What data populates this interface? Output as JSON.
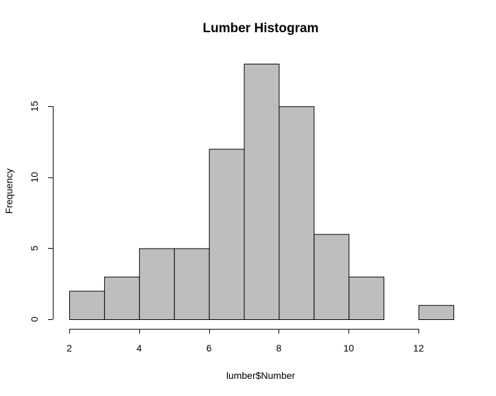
{
  "chart_data": {
    "type": "bar",
    "title": "Lumber Histogram",
    "xlabel": "lumber$Number",
    "ylabel": "Frequency",
    "bins": [
      {
        "start": 2,
        "end": 3,
        "count": 2
      },
      {
        "start": 3,
        "end": 4,
        "count": 3
      },
      {
        "start": 4,
        "end": 5,
        "count": 5
      },
      {
        "start": 5,
        "end": 6,
        "count": 5
      },
      {
        "start": 6,
        "end": 7,
        "count": 12
      },
      {
        "start": 7,
        "end": 8,
        "count": 18
      },
      {
        "start": 8,
        "end": 9,
        "count": 15
      },
      {
        "start": 9,
        "end": 10,
        "count": 6
      },
      {
        "start": 10,
        "end": 11,
        "count": 3
      },
      {
        "start": 11,
        "end": 12,
        "count": 0
      },
      {
        "start": 12,
        "end": 13,
        "count": 1
      }
    ],
    "xticks": [
      2,
      4,
      6,
      8,
      10,
      12
    ],
    "yticks": [
      0,
      5,
      10,
      15
    ],
    "xlim": [
      2,
      13
    ],
    "ylim": [
      0,
      18
    ],
    "bar_color": "#bebebe",
    "grid": false
  }
}
